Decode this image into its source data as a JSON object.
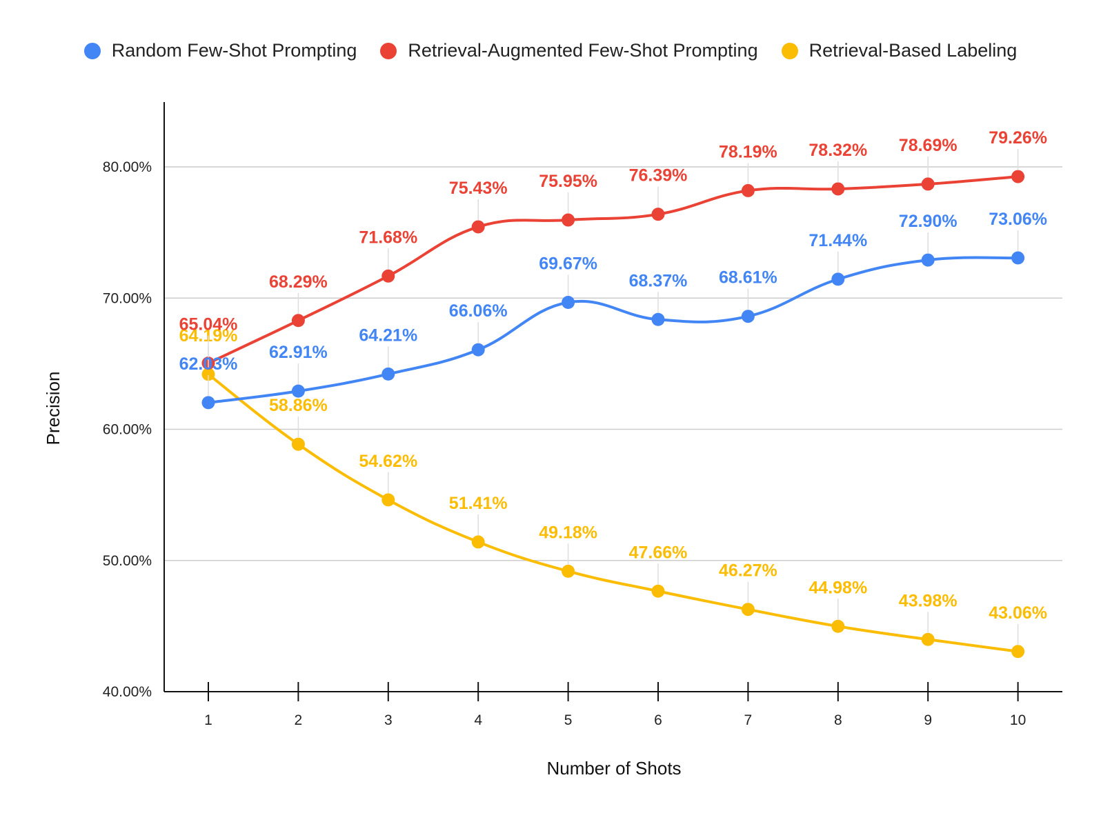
{
  "chart_data": {
    "type": "line",
    "title": "",
    "xlabel": "Number of Shots",
    "ylabel": "Precision",
    "x": [
      1,
      2,
      3,
      4,
      5,
      6,
      7,
      8,
      9,
      10
    ],
    "x_tick_labels": [
      "1",
      "2",
      "3",
      "4",
      "5",
      "6",
      "7",
      "8",
      "9",
      "10"
    ],
    "ylim": [
      40,
      85
    ],
    "y_ticks": [
      40,
      50,
      60,
      70,
      80
    ],
    "y_tick_labels": [
      "40.00%",
      "50.00%",
      "60.00%",
      "70.00%",
      "80.00%"
    ],
    "grid": true,
    "legend_position": "top",
    "series": [
      {
        "name": "Random Few-Shot Prompting",
        "color": "#4285F4",
        "values": [
          62.03,
          62.91,
          64.21,
          66.06,
          69.67,
          68.37,
          68.61,
          71.44,
          72.9,
          73.06
        ],
        "labels": [
          "62.03%",
          "62.91%",
          "64.21%",
          "66.06%",
          "69.67%",
          "68.37%",
          "68.61%",
          "71.44%",
          "72.90%",
          "73.06%"
        ]
      },
      {
        "name": "Retrieval-Augmented Few-Shot Prompting",
        "color": "#EA4335",
        "values": [
          65.04,
          68.29,
          71.68,
          75.43,
          75.95,
          76.39,
          78.19,
          78.32,
          78.69,
          79.26
        ],
        "labels": [
          "65.04%",
          "68.29%",
          "71.68%",
          "75.43%",
          "75.95%",
          "76.39%",
          "78.19%",
          "78.32%",
          "78.69%",
          "79.26%"
        ]
      },
      {
        "name": "Retrieval-Based Labeling",
        "color": "#FBBC04",
        "values": [
          64.19,
          58.86,
          54.62,
          51.41,
          49.18,
          47.66,
          46.27,
          44.98,
          43.98,
          43.06
        ],
        "labels": [
          "64.19%",
          "58.86%",
          "54.62%",
          "51.41%",
          "49.18%",
          "47.66%",
          "46.27%",
          "44.98%",
          "43.98%",
          "43.06%"
        ]
      }
    ]
  }
}
